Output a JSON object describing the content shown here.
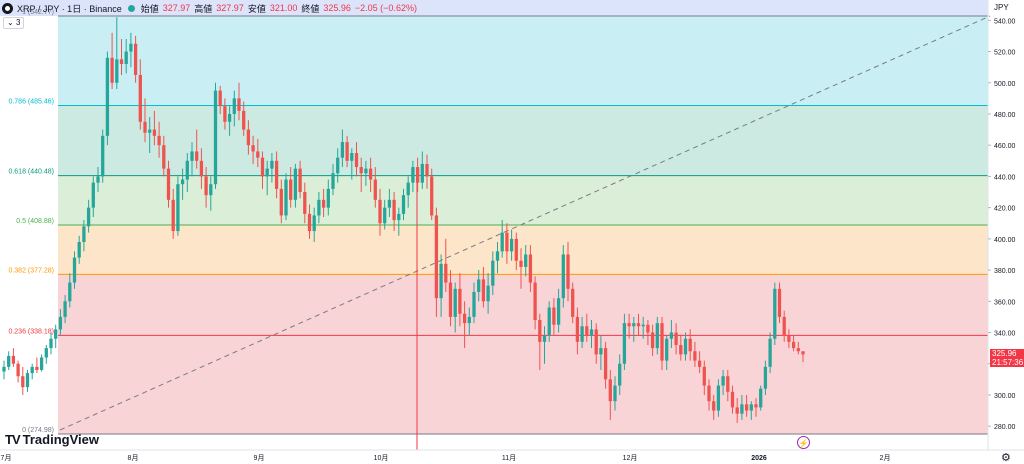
{
  "header": {
    "symbol": "XRP / JPY · 1日 · Binance",
    "open_label": "始値",
    "open": "327.97",
    "high_label": "高値",
    "high": "327.97",
    "low_label": "安値",
    "low": "321.00",
    "close_label": "終値",
    "close": "325.96",
    "change": "−2.05 (−0.62%)",
    "indicator_count": "3"
  },
  "price_tag": {
    "price": "325.96",
    "countdown": "21:57:36"
  },
  "logo": {
    "text": "TradingView"
  },
  "colors": {
    "up": "#26a69a",
    "down": "#ef5350",
    "accent": "#f23645"
  },
  "icons": {
    "settings": "gear-icon",
    "alert": "lightning-icon"
  },
  "chart_data": {
    "type": "candlestick",
    "y_axis_unit": "JPY",
    "ylim": [
      268,
      550
    ],
    "y_ticks": [
      280,
      300,
      320,
      340,
      360,
      380,
      400,
      420,
      440,
      460,
      480,
      500,
      520,
      540
    ],
    "x_tick_labels": [
      "7月",
      "8月",
      "9月",
      "10月",
      "11月",
      "12月",
      "2026",
      "2月"
    ],
    "fib_levels": [
      {
        "ratio": "1",
        "value": 542.77,
        "label": "1 (542.77)",
        "color": "#787b86",
        "fill": "#e0e0e3"
      },
      {
        "ratio": "0.786",
        "value": 485.46,
        "label": "0.786 (485.46)",
        "color": "#00bcd4",
        "fill": "#c9eff4"
      },
      {
        "ratio": "0.618",
        "value": 440.48,
        "label": "0.618 (440.48)",
        "color": "#089981",
        "fill": "#cdeae2"
      },
      {
        "ratio": "0.5",
        "value": 408.88,
        "label": "0.5 (408.88)",
        "color": "#4caf50",
        "fill": "#dbeed7"
      },
      {
        "ratio": "0.382",
        "value": 377.28,
        "label": "0.382 (377.28)",
        "color": "#ff9800",
        "fill": "#fce5c8"
      },
      {
        "ratio": "0.236",
        "value": 338.18,
        "label": "0.236 (338.18)",
        "color": "#f23645",
        "fill": "#f9d4d6"
      },
      {
        "ratio": "0",
        "value": 274.98,
        "label": "0 (274.98)",
        "color": "#787b86",
        "fill": ""
      }
    ],
    "candles": [
      [
        315,
        322,
        310,
        318
      ],
      [
        318,
        328,
        316,
        325
      ],
      [
        325,
        330,
        318,
        320
      ],
      [
        320,
        322,
        308,
        312
      ],
      [
        312,
        318,
        300,
        305
      ],
      [
        305,
        316,
        302,
        314
      ],
      [
        314,
        320,
        310,
        318
      ],
      [
        318,
        324,
        314,
        316
      ],
      [
        316,
        326,
        315,
        324
      ],
      [
        324,
        332,
        320,
        330
      ],
      [
        330,
        340,
        326,
        336
      ],
      [
        336,
        345,
        330,
        342
      ],
      [
        342,
        355,
        338,
        350
      ],
      [
        350,
        364,
        346,
        360
      ],
      [
        360,
        378,
        356,
        372
      ],
      [
        372,
        392,
        368,
        388
      ],
      [
        388,
        402,
        384,
        398
      ],
      [
        398,
        412,
        392,
        408
      ],
      [
        408,
        425,
        404,
        420
      ],
      [
        420,
        440,
        414,
        436
      ],
      [
        436,
        446,
        430,
        440
      ],
      [
        440,
        470,
        436,
        466
      ],
      [
        466,
        520,
        460,
        516
      ],
      [
        516,
        532,
        496,
        500
      ],
      [
        500,
        542,
        496,
        515
      ],
      [
        515,
        528,
        505,
        512
      ],
      [
        512,
        528,
        506,
        520
      ],
      [
        520,
        532,
        510,
        525
      ],
      [
        525,
        530,
        500,
        505
      ],
      [
        505,
        515,
        470,
        475
      ],
      [
        475,
        490,
        462,
        468
      ],
      [
        468,
        478,
        455,
        470
      ],
      [
        470,
        482,
        460,
        466
      ],
      [
        466,
        475,
        452,
        460
      ],
      [
        460,
        466,
        440,
        445
      ],
      [
        445,
        450,
        420,
        425
      ],
      [
        425,
        432,
        400,
        405
      ],
      [
        405,
        440,
        402,
        435
      ],
      [
        435,
        445,
        425,
        438
      ],
      [
        438,
        455,
        430,
        450
      ],
      [
        450,
        462,
        440,
        456
      ],
      [
        456,
        470,
        445,
        450
      ],
      [
        450,
        458,
        432,
        440
      ],
      [
        440,
        446,
        420,
        428
      ],
      [
        428,
        440,
        418,
        435
      ],
      [
        435,
        500,
        432,
        495
      ],
      [
        495,
        498,
        480,
        485
      ],
      [
        485,
        490,
        470,
        475
      ],
      [
        475,
        485,
        466,
        480
      ],
      [
        480,
        495,
        472,
        490
      ],
      [
        490,
        500,
        476,
        482
      ],
      [
        482,
        488,
        466,
        470
      ],
      [
        470,
        476,
        454,
        460
      ],
      [
        460,
        466,
        448,
        456
      ],
      [
        456,
        464,
        446,
        452
      ],
      [
        452,
        456,
        432,
        440
      ],
      [
        440,
        450,
        428,
        445
      ],
      [
        445,
        455,
        436,
        450
      ],
      [
        450,
        456,
        426,
        432
      ],
      [
        432,
        438,
        410,
        415
      ],
      [
        415,
        442,
        412,
        438
      ],
      [
        438,
        446,
        420,
        425
      ],
      [
        425,
        448,
        420,
        445
      ],
      [
        445,
        450,
        426,
        430
      ],
      [
        430,
        436,
        410,
        416
      ],
      [
        416,
        422,
        400,
        405
      ],
      [
        405,
        420,
        398,
        415
      ],
      [
        415,
        430,
        410,
        425
      ],
      [
        425,
        432,
        414,
        420
      ],
      [
        420,
        438,
        415,
        432
      ],
      [
        432,
        448,
        428,
        442
      ],
      [
        442,
        458,
        436,
        452
      ],
      [
        452,
        470,
        446,
        462
      ],
      [
        462,
        466,
        446,
        450
      ],
      [
        450,
        458,
        438,
        455
      ],
      [
        455,
        462,
        440,
        446
      ],
      [
        446,
        452,
        430,
        442
      ],
      [
        442,
        450,
        434,
        445
      ],
      [
        445,
        452,
        430,
        438
      ],
      [
        438,
        446,
        420,
        425
      ],
      [
        425,
        432,
        402,
        410
      ],
      [
        410,
        425,
        406,
        420
      ],
      [
        420,
        432,
        414,
        425
      ],
      [
        425,
        430,
        405,
        412
      ],
      [
        412,
        420,
        402,
        416
      ],
      [
        416,
        432,
        412,
        428
      ],
      [
        428,
        440,
        420,
        436
      ],
      [
        436,
        450,
        430,
        446
      ],
      [
        446,
        452,
        430,
        436
      ],
      [
        436,
        456,
        432,
        448
      ],
      [
        448,
        454,
        432,
        440
      ],
      [
        440,
        445,
        412,
        415
      ],
      [
        415,
        420,
        350,
        362
      ],
      [
        362,
        390,
        350,
        384
      ],
      [
        384,
        400,
        366,
        372
      ],
      [
        372,
        380,
        344,
        350
      ],
      [
        350,
        372,
        340,
        368
      ],
      [
        368,
        378,
        344,
        352
      ],
      [
        352,
        360,
        330,
        346
      ],
      [
        346,
        356,
        338,
        350
      ],
      [
        350,
        372,
        346,
        366
      ],
      [
        366,
        380,
        360,
        374
      ],
      [
        374,
        382,
        356,
        360
      ],
      [
        360,
        378,
        352,
        370
      ],
      [
        370,
        392,
        364,
        386
      ],
      [
        386,
        398,
        378,
        392
      ],
      [
        392,
        412,
        388,
        404
      ],
      [
        404,
        410,
        384,
        392
      ],
      [
        392,
        406,
        386,
        400
      ],
      [
        400,
        404,
        380,
        386
      ],
      [
        386,
        394,
        368,
        382
      ],
      [
        382,
        396,
        376,
        390
      ],
      [
        390,
        396,
        366,
        372
      ],
      [
        372,
        376,
        342,
        348
      ],
      [
        348,
        352,
        316,
        334
      ],
      [
        334,
        344,
        320,
        338
      ],
      [
        338,
        360,
        334,
        356
      ],
      [
        356,
        362,
        338,
        345
      ],
      [
        345,
        368,
        340,
        362
      ],
      [
        362,
        396,
        356,
        390
      ],
      [
        390,
        398,
        360,
        368
      ],
      [
        368,
        372,
        346,
        350
      ],
      [
        350,
        356,
        326,
        334
      ],
      [
        334,
        350,
        330,
        344
      ],
      [
        344,
        352,
        334,
        338
      ],
      [
        338,
        348,
        330,
        342
      ],
      [
        342,
        346,
        320,
        326
      ],
      [
        326,
        338,
        316,
        330
      ],
      [
        330,
        334,
        304,
        310
      ],
      [
        310,
        316,
        284,
        296
      ],
      [
        296,
        312,
        290,
        306
      ],
      [
        306,
        326,
        300,
        320
      ],
      [
        320,
        352,
        316,
        346
      ],
      [
        346,
        352,
        336,
        344
      ],
      [
        344,
        350,
        334,
        346
      ],
      [
        346,
        352,
        338,
        344
      ],
      [
        344,
        350,
        336,
        345
      ],
      [
        345,
        348,
        332,
        340
      ],
      [
        340,
        345,
        325,
        330
      ],
      [
        330,
        350,
        326,
        346
      ],
      [
        346,
        350,
        316,
        322
      ],
      [
        322,
        338,
        316,
        336
      ],
      [
        336,
        348,
        330,
        340
      ],
      [
        340,
        346,
        326,
        332
      ],
      [
        332,
        338,
        322,
        326
      ],
      [
        326,
        340,
        322,
        336
      ],
      [
        336,
        342,
        322,
        328
      ],
      [
        328,
        334,
        318,
        322
      ],
      [
        322,
        328,
        314,
        318
      ],
      [
        318,
        322,
        300,
        306
      ],
      [
        306,
        310,
        290,
        296
      ],
      [
        296,
        300,
        284,
        290
      ],
      [
        290,
        310,
        286,
        306
      ],
      [
        306,
        316,
        300,
        312
      ],
      [
        312,
        316,
        296,
        302
      ],
      [
        302,
        306,
        288,
        292
      ],
      [
        292,
        298,
        282,
        288
      ],
      [
        288,
        300,
        284,
        294
      ],
      [
        294,
        300,
        286,
        290
      ],
      [
        290,
        296,
        284,
        294
      ],
      [
        294,
        298,
        286,
        292
      ],
      [
        292,
        306,
        290,
        304
      ],
      [
        304,
        322,
        300,
        318
      ],
      [
        318,
        340,
        314,
        336
      ],
      [
        336,
        372,
        332,
        368
      ],
      [
        368,
        372,
        346,
        350
      ],
      [
        350,
        354,
        334,
        338
      ],
      [
        338,
        342,
        330,
        334
      ],
      [
        334,
        338,
        328,
        330
      ],
      [
        330,
        334,
        326,
        328
      ],
      [
        327.97,
        327.97,
        321,
        325.96
      ]
    ]
  }
}
